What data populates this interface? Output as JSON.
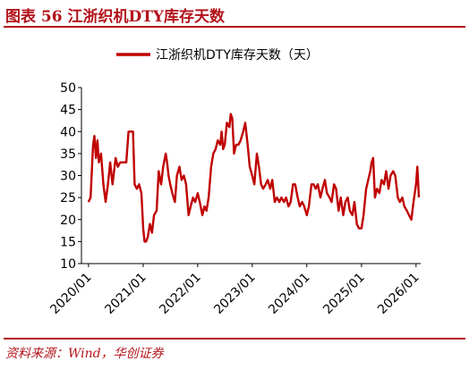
{
  "figure": {
    "title": "图表 56 江浙织机DTY库存天数",
    "source": "资料来源：Wind，华创证券"
  },
  "chart_data": {
    "type": "line",
    "series": [
      {
        "name": "江浙织机DTY库存天数（天）",
        "color": "#c00000",
        "points": [
          [
            "2020-01-01",
            24
          ],
          [
            "2020-01-15",
            25
          ],
          [
            "2020-02-01",
            37
          ],
          [
            "2020-02-10",
            39
          ],
          [
            "2020-02-20",
            34
          ],
          [
            "2020-03-01",
            38
          ],
          [
            "2020-03-10",
            33
          ],
          [
            "2020-03-25",
            35
          ],
          [
            "2020-04-10",
            28
          ],
          [
            "2020-04-25",
            24
          ],
          [
            "2020-05-10",
            28
          ],
          [
            "2020-05-25",
            33
          ],
          [
            "2020-06-10",
            28
          ],
          [
            "2020-07-01",
            34
          ],
          [
            "2020-07-15",
            32
          ],
          [
            "2020-08-01",
            33
          ],
          [
            "2020-08-20",
            33
          ],
          [
            "2020-09-10",
            33
          ],
          [
            "2020-09-25",
            40
          ],
          [
            "2020-10-10",
            40
          ],
          [
            "2020-10-25",
            40
          ],
          [
            "2020-11-05",
            28
          ],
          [
            "2020-11-20",
            27
          ],
          [
            "2020-12-05",
            28
          ],
          [
            "2020-12-20",
            26
          ],
          [
            "2021-01-01",
            18
          ],
          [
            "2021-01-10",
            15
          ],
          [
            "2021-01-20",
            15
          ],
          [
            "2021-02-01",
            16
          ],
          [
            "2021-02-15",
            19
          ],
          [
            "2021-03-01",
            17
          ],
          [
            "2021-03-15",
            21
          ],
          [
            "2021-04-01",
            22
          ],
          [
            "2021-04-15",
            31
          ],
          [
            "2021-05-01",
            28
          ],
          [
            "2021-05-15",
            32
          ],
          [
            "2021-06-01",
            35
          ],
          [
            "2021-06-10",
            33
          ],
          [
            "2021-06-20",
            30
          ],
          [
            "2021-07-01",
            28
          ],
          [
            "2021-07-15",
            26
          ],
          [
            "2021-08-01",
            24
          ],
          [
            "2021-08-15",
            30
          ],
          [
            "2021-09-01",
            32
          ],
          [
            "2021-09-15",
            29
          ],
          [
            "2021-10-01",
            30
          ],
          [
            "2021-10-15",
            28
          ],
          [
            "2021-11-01",
            21
          ],
          [
            "2021-11-15",
            23
          ],
          [
            "2021-12-01",
            25
          ],
          [
            "2021-12-15",
            24
          ],
          [
            "2022-01-01",
            26
          ],
          [
            "2022-01-15",
            24
          ],
          [
            "2022-02-01",
            21
          ],
          [
            "2022-02-15",
            23
          ],
          [
            "2022-03-01",
            22
          ],
          [
            "2022-03-15",
            25
          ],
          [
            "2022-04-01",
            32
          ],
          [
            "2022-04-15",
            35
          ],
          [
            "2022-05-01",
            36
          ],
          [
            "2022-05-15",
            38
          ],
          [
            "2022-06-01",
            37
          ],
          [
            "2022-06-10",
            40
          ],
          [
            "2022-06-20",
            36
          ],
          [
            "2022-07-01",
            37
          ],
          [
            "2022-07-15",
            42
          ],
          [
            "2022-08-01",
            41
          ],
          [
            "2022-08-10",
            44
          ],
          [
            "2022-08-20",
            43
          ],
          [
            "2022-09-01",
            35
          ],
          [
            "2022-09-15",
            37
          ],
          [
            "2022-10-01",
            37
          ],
          [
            "2022-10-15",
            38
          ],
          [
            "2022-11-01",
            40
          ],
          [
            "2022-11-15",
            42
          ],
          [
            "2022-12-01",
            37
          ],
          [
            "2022-12-15",
            32
          ],
          [
            "2023-01-01",
            30
          ],
          [
            "2023-01-15",
            28
          ],
          [
            "2023-02-01",
            35
          ],
          [
            "2023-02-15",
            32
          ],
          [
            "2023-03-01",
            28
          ],
          [
            "2023-03-15",
            27
          ],
          [
            "2023-04-01",
            28
          ],
          [
            "2023-04-15",
            29
          ],
          [
            "2023-05-01",
            27
          ],
          [
            "2023-05-15",
            29
          ],
          [
            "2023-06-01",
            24
          ],
          [
            "2023-06-15",
            25
          ],
          [
            "2023-07-01",
            24
          ],
          [
            "2023-07-15",
            25
          ],
          [
            "2023-08-01",
            24
          ],
          [
            "2023-08-15",
            25
          ],
          [
            "2023-09-01",
            23
          ],
          [
            "2023-09-15",
            24
          ],
          [
            "2023-10-01",
            28
          ],
          [
            "2023-10-15",
            28
          ],
          [
            "2023-11-01",
            25
          ],
          [
            "2023-11-15",
            23
          ],
          [
            "2023-12-01",
            24
          ],
          [
            "2023-12-15",
            23
          ],
          [
            "2024-01-01",
            21
          ],
          [
            "2024-01-15",
            23
          ],
          [
            "2024-02-01",
            28
          ],
          [
            "2024-02-15",
            28
          ],
          [
            "2024-03-01",
            27
          ],
          [
            "2024-03-15",
            28
          ],
          [
            "2024-04-01",
            25
          ],
          [
            "2024-04-15",
            27
          ],
          [
            "2024-05-01",
            29
          ],
          [
            "2024-05-15",
            26
          ],
          [
            "2024-06-01",
            25
          ],
          [
            "2024-06-15",
            24
          ],
          [
            "2024-07-01",
            28
          ],
          [
            "2024-07-15",
            27
          ],
          [
            "2024-08-01",
            22
          ],
          [
            "2024-08-15",
            25
          ],
          [
            "2024-09-01",
            21
          ],
          [
            "2024-09-15",
            24
          ],
          [
            "2024-10-01",
            25
          ],
          [
            "2024-10-15",
            22
          ],
          [
            "2024-11-01",
            21
          ],
          [
            "2024-11-15",
            24
          ],
          [
            "2024-12-01",
            19
          ],
          [
            "2024-12-15",
            18
          ],
          [
            "2025-01-01",
            18
          ],
          [
            "2025-01-15",
            21
          ],
          [
            "2025-02-01",
            27
          ],
          [
            "2025-02-15",
            29
          ],
          [
            "2025-03-01",
            31
          ],
          [
            "2025-03-10",
            33
          ],
          [
            "2025-03-20",
            34
          ],
          [
            "2025-04-01",
            25
          ],
          [
            "2025-04-15",
            27
          ],
          [
            "2025-05-01",
            26
          ],
          [
            "2025-05-15",
            29
          ],
          [
            "2025-06-01",
            28
          ],
          [
            "2025-06-15",
            31
          ],
          [
            "2025-07-01",
            27
          ],
          [
            "2025-07-15",
            30
          ],
          [
            "2025-08-01",
            31
          ],
          [
            "2025-08-15",
            30
          ],
          [
            "2025-09-01",
            25
          ],
          [
            "2025-09-15",
            24
          ],
          [
            "2025-10-01",
            25
          ],
          [
            "2025-10-15",
            23
          ],
          [
            "2025-11-01",
            22
          ],
          [
            "2025-11-15",
            21
          ],
          [
            "2025-12-01",
            20
          ],
          [
            "2025-12-15",
            24
          ],
          [
            "2026-01-01",
            28
          ],
          [
            "2026-01-10",
            32
          ],
          [
            "2026-01-20",
            25
          ]
        ]
      }
    ],
    "x_ticks": [
      "2020/01",
      "2021/01",
      "2022/01",
      "2023/01",
      "2024/01",
      "2025/01",
      "2026/01"
    ],
    "y_ticks": [
      10,
      15,
      20,
      25,
      30,
      35,
      40,
      45,
      50
    ],
    "ylim": [
      10,
      50
    ],
    "xlim": [
      "2019-11-15",
      "2026-02-01"
    ],
    "legend_position": "top-center",
    "grid": false
  }
}
